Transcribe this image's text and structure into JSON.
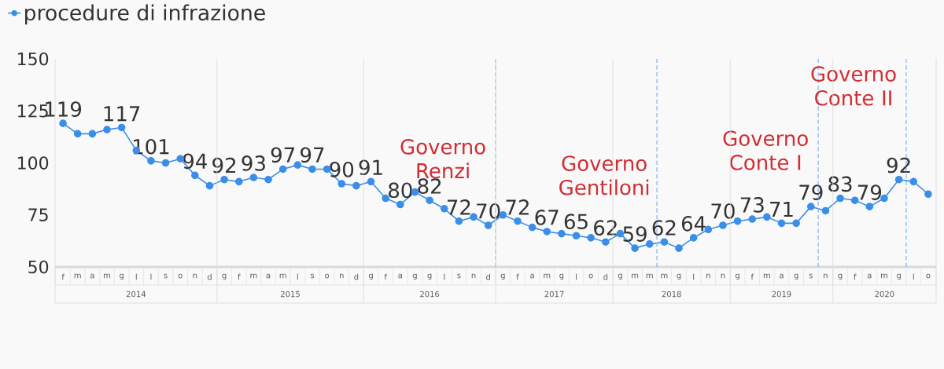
{
  "chart_data": {
    "type": "line",
    "categories": [
      "f",
      "m",
      "a",
      "m",
      "g",
      "l",
      "l",
      "s",
      "o",
      "n",
      "d",
      "g",
      "f",
      "m",
      "a",
      "m",
      "l",
      "s",
      "o",
      "n",
      "d",
      "g",
      "f",
      "a",
      "g",
      "g",
      "l",
      "s",
      "n",
      "d",
      "g",
      "f",
      "a",
      "m",
      "g",
      "l",
      "o",
      "d",
      "g",
      "m",
      "m",
      "m",
      "g",
      "l",
      "n",
      "n",
      "g",
      "f",
      "m",
      "a",
      "g",
      "s",
      "n",
      "g",
      "f",
      "a",
      "m",
      "g",
      "l",
      "o"
    ],
    "series": [
      {
        "name": "procedure di infrazione",
        "color": "#3a8ee8",
        "values": [
          119,
          114,
          114,
          116,
          117,
          106,
          101,
          100,
          102,
          94,
          89,
          92,
          91,
          93,
          92,
          97,
          99,
          97,
          97,
          90,
          89,
          91,
          83,
          80,
          86,
          82,
          78,
          72,
          74,
          70,
          75,
          72,
          69,
          67,
          66,
          65,
          64,
          62,
          66,
          59,
          61,
          62,
          59,
          64,
          68,
          70,
          72,
          73,
          74,
          71,
          71,
          79,
          77,
          83,
          82,
          79,
          83,
          92,
          91,
          85
        ],
        "value_labels": [
          "119",
          null,
          null,
          null,
          "117",
          null,
          "101",
          null,
          null,
          "94",
          null,
          "92",
          null,
          "93",
          null,
          "97",
          null,
          "97",
          null,
          "90",
          null,
          "91",
          null,
          "80",
          null,
          "82",
          null,
          "72",
          null,
          "70",
          null,
          "72",
          null,
          "67",
          null,
          "65",
          null,
          "62",
          null,
          "59",
          null,
          "62",
          null,
          "64",
          null,
          "70",
          null,
          "73",
          null,
          "71",
          null,
          "79",
          null,
          "83",
          null,
          "79",
          null,
          "92",
          null,
          null
        ]
      }
    ],
    "ylim": [
      50,
      150
    ],
    "yticks": [
      50,
      75,
      100,
      125,
      150
    ],
    "marker": "circle",
    "legend": "top left",
    "annotations": [
      "2014",
      "2015",
      "2016",
      "2017",
      "2018",
      "2019",
      "2020",
      "Governo Renzi",
      "Governo Gentiloni",
      "Governo Conte I",
      "Governo Conte II"
    ]
  }
}
